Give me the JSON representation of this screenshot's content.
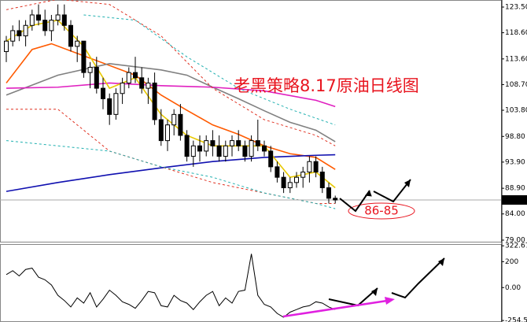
{
  "chart_data": [
    {
      "type": "candlestick",
      "open": [
        115,
        117,
        119,
        118,
        120,
        122,
        121,
        119,
        121,
        122,
        120,
        116,
        117,
        111,
        112,
        108,
        106,
        103,
        107,
        109,
        111,
        110,
        108,
        109,
        102,
        98,
        101,
        103,
        99,
        95,
        97,
        96,
        98,
        97,
        95,
        97,
        98,
        97,
        95,
        98,
        97,
        96,
        93,
        91,
        89,
        90,
        91,
        92,
        94,
        92,
        89,
        87
      ],
      "high": [
        118,
        120,
        121,
        121,
        123,
        124,
        123,
        122,
        124,
        124,
        121,
        118,
        117,
        113,
        114,
        110,
        107,
        108,
        110,
        112,
        114,
        112,
        110,
        111,
        104,
        102,
        104,
        105,
        100,
        98,
        99,
        99,
        100,
        99,
        98,
        99,
        100,
        98,
        99,
        102,
        98,
        97,
        94,
        92,
        91,
        92,
        93,
        95,
        95,
        93,
        90,
        87.5
      ],
      "low": [
        113,
        116,
        117,
        116,
        119,
        120,
        118,
        117,
        120,
        119,
        115,
        113,
        110,
        108,
        107,
        104,
        101,
        102,
        105,
        108,
        109,
        107,
        105,
        101,
        97,
        96,
        99,
        98,
        94,
        93,
        94,
        95,
        95,
        94,
        94,
        95,
        96,
        94,
        94,
        96,
        95,
        92,
        90,
        88,
        88,
        89,
        89,
        90,
        91,
        88,
        86,
        86
      ],
      "close": [
        117,
        119,
        118,
        120,
        122,
        121,
        119,
        121,
        122,
        120,
        116,
        117,
        111,
        112,
        108,
        106,
        103,
        107,
        109,
        111,
        110,
        108,
        109,
        102,
        98,
        101,
        103,
        99,
        95,
        97,
        96,
        98,
        97,
        95,
        97,
        98,
        97,
        95,
        98,
        97,
        96,
        93,
        91,
        89,
        90,
        91,
        92,
        94,
        92,
        89,
        87,
        86.67
      ],
      "up_color": "#ffffff",
      "down_color": "#000000",
      "ylim": [
        78.7,
        124.7
      ],
      "yticks": [
        {
          "value": 123.5,
          "label": "123.50"
        },
        {
          "value": 118.6,
          "label": "118.60"
        },
        {
          "value": 113.6,
          "label": "113.60"
        },
        {
          "value": 108.7,
          "label": "108.70"
        },
        {
          "value": 103.8,
          "label": "103.80"
        },
        {
          "value": 98.8,
          "label": "98.80"
        },
        {
          "value": 93.9,
          "label": "93.90"
        },
        {
          "value": 88.9,
          "label": "88.90"
        },
        {
          "value": 84,
          "label": "84.00"
        },
        {
          "value": 79,
          "label": "79.00"
        }
      ],
      "last_price": 86.67,
      "lines": [
        {
          "color": "#ff5a00",
          "dash": false,
          "x": [
            0,
            4,
            7,
            12,
            20,
            24,
            28,
            32,
            36,
            40,
            44,
            48,
            51
          ],
          "values": [
            109,
            115.4,
            116.5,
            114.2,
            110.5,
            106.7,
            103.8,
            101,
            99.2,
            97,
            95.5,
            94.8,
            92.5
          ]
        },
        {
          "color": "#808080",
          "dash": false,
          "x": [
            0,
            8,
            16,
            24,
            28,
            32,
            36,
            40,
            44,
            48,
            51
          ],
          "values": [
            106.7,
            110.5,
            112.7,
            111.5,
            110.5,
            108.2,
            106,
            103.7,
            101.5,
            100,
            97.8
          ]
        },
        {
          "color": "#e020c0",
          "dash": false,
          "x": [
            0,
            8,
            16,
            24,
            32,
            40,
            48,
            51
          ],
          "values": [
            108,
            108.2,
            109,
            108.5,
            108.2,
            107.5,
            105.7,
            104.5
          ]
        },
        {
          "color": "#1010b0",
          "dash": false,
          "x": [
            0,
            8,
            16,
            24,
            32,
            40,
            48,
            51
          ],
          "values": [
            88.3,
            90,
            91.5,
            92.8,
            94,
            94.8,
            95.2,
            95.3
          ]
        },
        {
          "color": "#e8c800",
          "dash": false,
          "x": [
            0,
            4,
            8,
            12,
            16,
            20,
            24,
            28,
            32,
            36,
            40,
            44,
            48,
            51
          ],
          "values": [
            117,
            120,
            121,
            116,
            108,
            110,
            103,
            99,
            97,
            97,
            97,
            91,
            92,
            89
          ]
        },
        {
          "color": "#e03020",
          "dash": true,
          "x": [
            0,
            8,
            16,
            24,
            32,
            40,
            48,
            51
          ],
          "values": [
            123,
            125,
            124,
            118,
            108,
            102,
            99,
            97
          ]
        },
        {
          "color": "#e03020",
          "dash": true,
          "x": [
            0,
            8,
            16,
            24,
            32,
            40,
            48,
            51
          ],
          "values": [
            104,
            104,
            96,
            93,
            90,
            88,
            86,
            86
          ]
        },
        {
          "color": "#20b0b0",
          "dash": true,
          "x": [
            12,
            20,
            28,
            36,
            44,
            51
          ],
          "values": [
            122,
            121,
            114,
            108,
            104,
            101
          ]
        },
        {
          "color": "#20b0b0",
          "dash": true,
          "x": [
            0,
            16,
            24,
            32,
            40,
            48,
            51
          ],
          "values": [
            98,
            96,
            93,
            91,
            88,
            86,
            85
          ]
        }
      ],
      "annotations": [
        {
          "text": "老黑策略8.17原油日线图"
        },
        {
          "text": "86-85"
        }
      ]
    },
    {
      "type": "line",
      "color": "#000000",
      "values": [
        100,
        130,
        90,
        140,
        150,
        80,
        60,
        20,
        -60,
        -100,
        -150,
        -80,
        -120,
        -40,
        -150,
        -90,
        -20,
        -60,
        -110,
        -130,
        -160,
        -100,
        -30,
        -40,
        -140,
        -150,
        -60,
        -100,
        -120,
        -170,
        -110,
        -60,
        -30,
        -140,
        -80,
        -120,
        -30,
        -20,
        260,
        -60,
        -130,
        -150,
        -200,
        -230,
        -190,
        -170,
        -150,
        -140,
        -110,
        -120,
        -150,
        -170
      ],
      "ylim": [
        -260,
        330
      ],
      "yticks": [
        {
          "value": 322.67,
          "label": "322.670"
        },
        200,
        {
          "value": 0,
          "label": "0.00"
        },
        {
          "value": -254.56,
          "label": "-254.56"
        }
      ]
    }
  ]
}
